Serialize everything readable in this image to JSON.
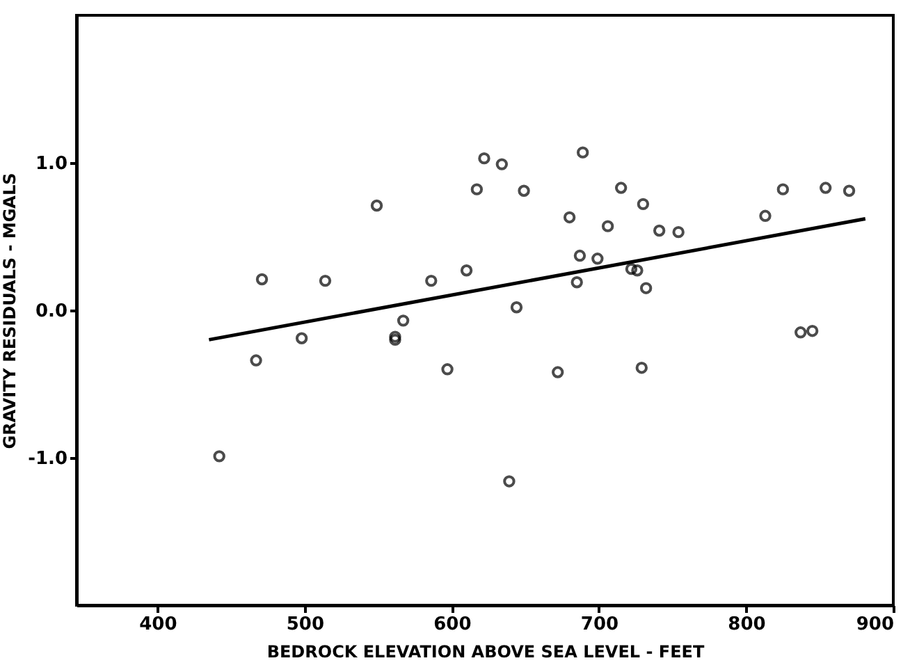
{
  "chart_data": {
    "type": "scatter",
    "xlabel": "BEDROCK ELEVATION ABOVE SEA LEVEL - FEET",
    "ylabel": "GRAVITY RESIDUALS - MGALS",
    "xlim": [
      345,
      900
    ],
    "ylim": [
      -2,
      2
    ],
    "xticks": [
      400,
      500,
      600,
      700,
      800,
      900
    ],
    "yticks": [
      {
        "value": -1,
        "label": "-1.0"
      },
      {
        "value": 0,
        "label": "0.0"
      },
      {
        "value": 1,
        "label": "1.0"
      }
    ],
    "grid": false,
    "marker": "circle",
    "series": [
      {
        "color": "#000000",
        "x": [
          442,
          467,
          471,
          498,
          514,
          549,
          561.5,
          561.5,
          567,
          586,
          597,
          610,
          617,
          622,
          634,
          639,
          644,
          649,
          672,
          680,
          685,
          687,
          689,
          699,
          706,
          715,
          722,
          726,
          729,
          730,
          732,
          741,
          754,
          813,
          825,
          837,
          845,
          854,
          870
        ],
        "values": [
          -0.99,
          -0.34,
          0.21,
          -0.19,
          0.2,
          0.71,
          -0.18,
          -0.2,
          -0.07,
          0.2,
          -0.4,
          0.27,
          0.82,
          1.03,
          0.99,
          -1.16,
          0.02,
          0.81,
          -0.42,
          0.63,
          0.19,
          0.37,
          1.07,
          0.35,
          0.57,
          0.83,
          0.28,
          0.27,
          -0.39,
          0.72,
          0.15,
          0.54,
          0.53,
          0.64,
          0.82,
          -0.15,
          -0.14,
          0.83,
          0.81
        ]
      },
      {
        "type": "line",
        "color": "#000000",
        "line_style": "solid",
        "marker": "none",
        "x": [
          435,
          881
        ],
        "values": [
          -0.2,
          0.62
        ]
      }
    ]
  }
}
